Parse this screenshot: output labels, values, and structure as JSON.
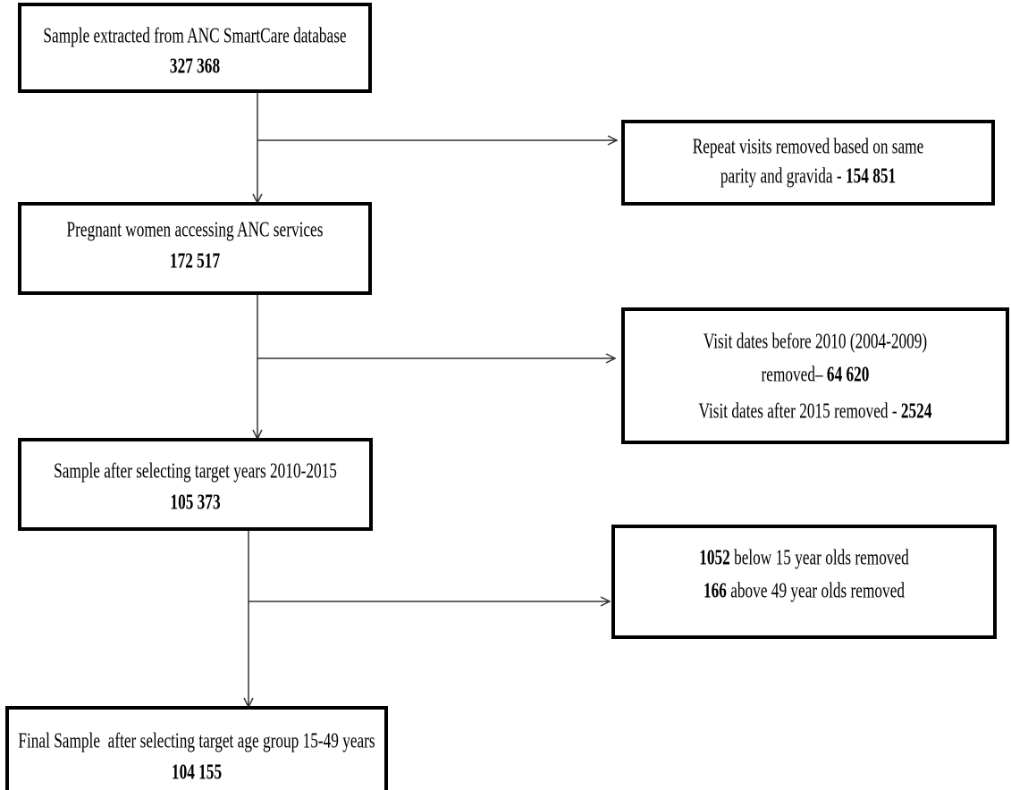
{
  "boxes": [
    {
      "lines": [
        [
          {
            "text": "Sample extracted from ANC SmartCare database",
            "bold": false
          }
        ],
        [
          {
            "text": "327 368",
            "bold": true
          }
        ]
      ]
    },
    {
      "lines": [
        [
          {
            "text": "Repeat visits removed based on same",
            "bold": false
          }
        ],
        [
          {
            "text": "parity and gravida - ",
            "bold": false
          },
          {
            "text": "154 851",
            "bold": true
          }
        ]
      ]
    },
    {
      "lines": [
        [
          {
            "text": "Pregnant women accessing ANC services",
            "bold": false
          }
        ],
        [
          {
            "text": "172 517",
            "bold": true
          }
        ]
      ]
    },
    {
      "lines": [
        [
          {
            "text": "Visit dates before 2010 (2004-2009)",
            "bold": false
          }
        ],
        [
          {
            "text": "removed– ",
            "bold": false
          },
          {
            "text": "64 620",
            "bold": true
          }
        ],
        [
          {
            "text": "Visit dates after 2015 removed - ",
            "bold": false
          },
          {
            "text": "2524",
            "bold": true
          }
        ]
      ]
    },
    {
      "lines": [
        [
          {
            "text": "Sample after selecting target years 2010-2015",
            "bold": false
          }
        ],
        [
          {
            "text": "105 373",
            "bold": true
          }
        ]
      ]
    },
    {
      "lines": [
        [
          {
            "text": "1052",
            "bold": true
          },
          {
            "text": " below 15 year olds removed",
            "bold": false
          }
        ],
        [
          {
            "text": "166",
            "bold": true
          },
          {
            "text": " above 49 year olds removed",
            "bold": false
          }
        ]
      ]
    },
    {
      "lines": [
        [
          {
            "text": "Final Sample  after selecting target age group 15-49 years",
            "bold": false
          }
        ],
        [
          {
            "text": "104 155",
            "bold": true
          }
        ]
      ]
    }
  ]
}
